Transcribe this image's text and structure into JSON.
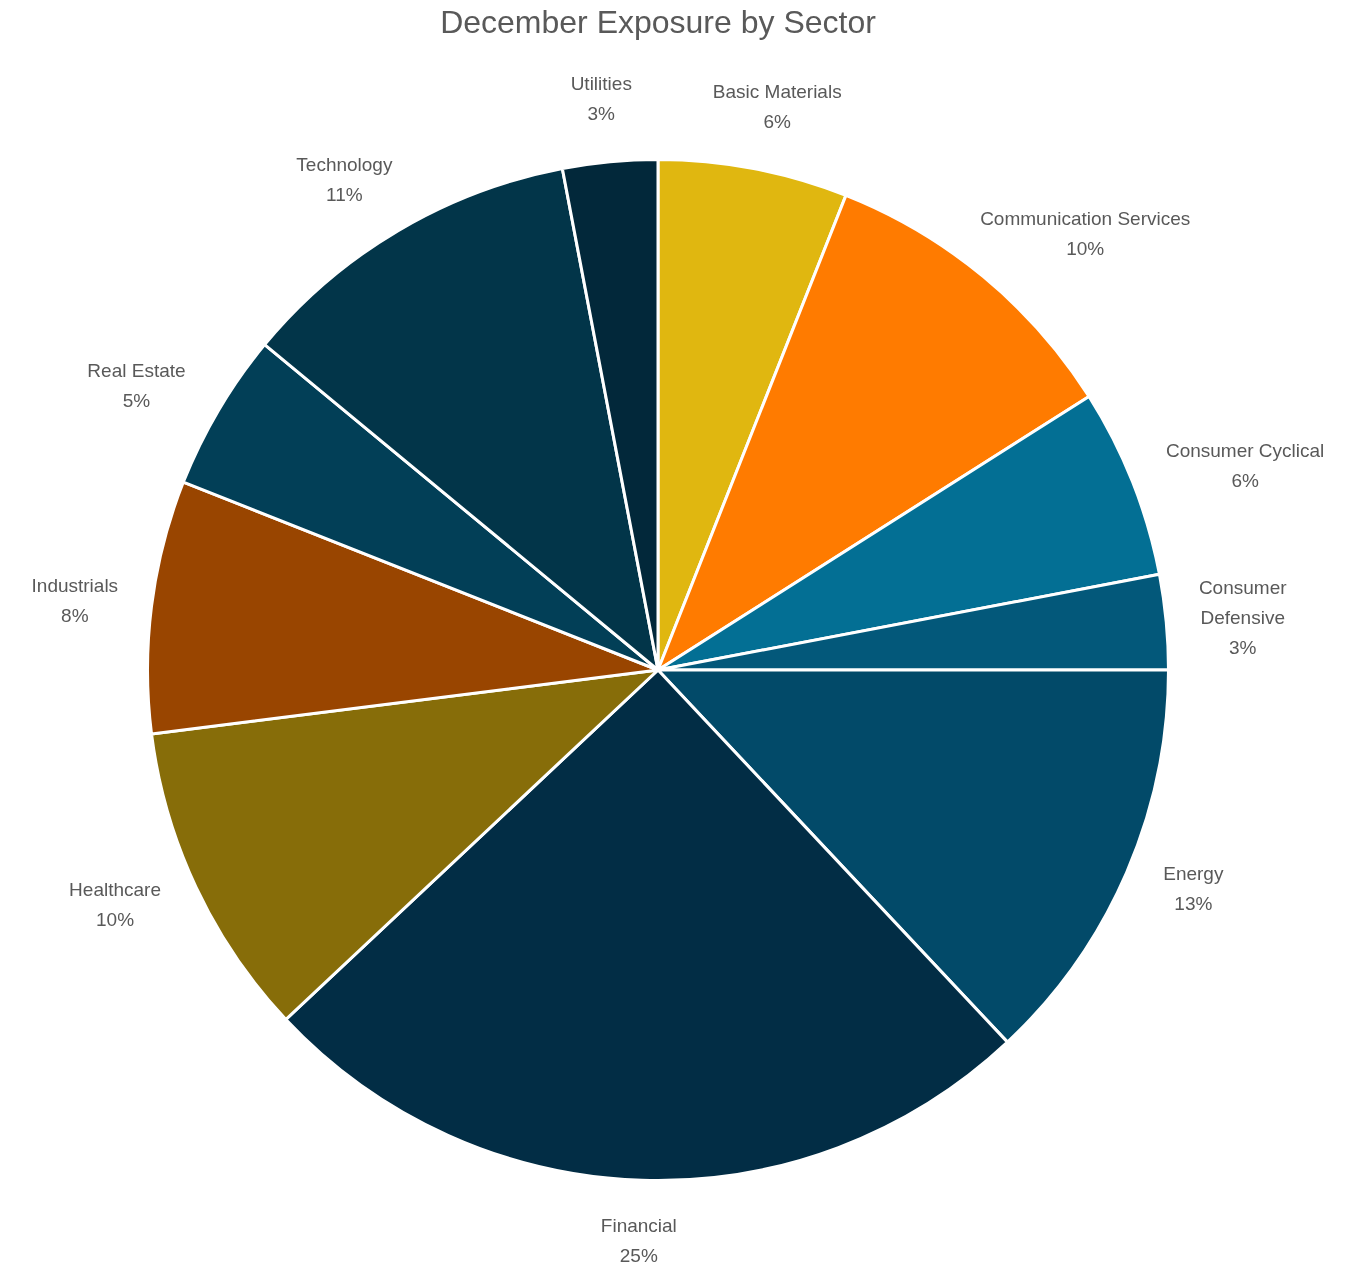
{
  "chart_data": {
    "type": "pie",
    "title": "December Exposure by Sector",
    "categories": [
      "Basic Materials",
      "Communication Services",
      "Consumer Cyclical",
      "Consumer Defensive",
      "Energy",
      "Financial",
      "Healthcare",
      "Industrials",
      "Real Estate",
      "Technology",
      "Utilities"
    ],
    "values": [
      6,
      10,
      6,
      3,
      13,
      25,
      10,
      8,
      5,
      11,
      3
    ],
    "value_labels": [
      "6%",
      "10%",
      "6%",
      "3%",
      "13%",
      "25%",
      "10%",
      "8%",
      "5%",
      "11%",
      "3%"
    ],
    "colors": [
      "#e0b710",
      "#ff7b00",
      "#036f94",
      "#03587a",
      "#024a69",
      "#022d45",
      "#876d09",
      "#994500",
      "#023f57",
      "#023549",
      "#02283a"
    ],
    "legend": false
  }
}
